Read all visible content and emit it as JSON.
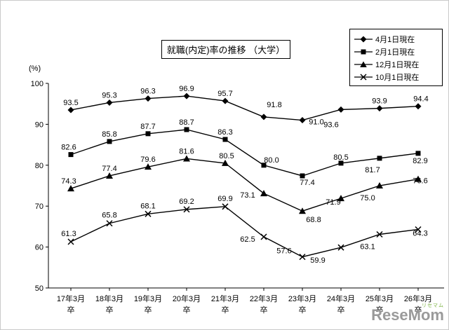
{
  "chart_data": {
    "type": "line",
    "title": "就職(内定)率の推移 （大学）",
    "ylabel": "(%)",
    "ylim": [
      50,
      100
    ],
    "ytick_step": 10,
    "grid": false,
    "legend_position": "top-right",
    "categories": [
      "17年3月卒",
      "18年3月卒",
      "19年3月卒",
      "20年3月卒",
      "21年3月卒",
      "22年3月卒",
      "23年3月卒",
      "24年3月卒",
      "25年3月卒",
      "26年3月卒"
    ],
    "series": [
      {
        "name": "4月1日現在",
        "marker": "diamond",
        "values": [
          93.5,
          95.3,
          96.3,
          96.9,
          95.7,
          91.8,
          91.0,
          93.6,
          93.9,
          94.4
        ]
      },
      {
        "name": "2月1日現在",
        "marker": "square",
        "values": [
          82.6,
          85.8,
          87.7,
          88.7,
          86.3,
          80.0,
          77.4,
          80.5,
          81.7,
          82.9
        ]
      },
      {
        "name": "12月1日現在",
        "marker": "triangle",
        "values": [
          74.3,
          77.4,
          79.6,
          81.6,
          80.5,
          73.1,
          68.8,
          71.9,
          75.0,
          76.6
        ]
      },
      {
        "name": "10月1日現在",
        "marker": "x",
        "values": [
          61.3,
          65.8,
          68.1,
          69.2,
          69.9,
          62.5,
          57.6,
          59.9,
          63.1,
          64.3
        ]
      }
    ]
  },
  "watermark": {
    "text": "ReseMom",
    "sub": "リセマム"
  }
}
